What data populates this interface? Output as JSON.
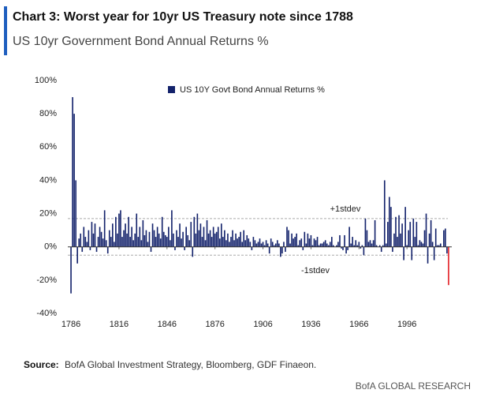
{
  "chart_data": {
    "type": "bar",
    "title": "Chart 3: Worst year for 10yr US Treasury note since 1788",
    "subtitle": "US 10yr Government Bond Annual Returns %",
    "source_label": "Source:",
    "source": "BofA Global Investment Strategy, Bloomberg, GDF Finaeon.",
    "footer": "BofA GLOBAL RESEARCH",
    "x": [
      1786,
      1787,
      1788,
      1789,
      1790,
      1791,
      1792,
      1793,
      1794,
      1795,
      1796,
      1797,
      1798,
      1799,
      1800,
      1801,
      1802,
      1803,
      1804,
      1805,
      1806,
      1807,
      1808,
      1809,
      1810,
      1811,
      1812,
      1813,
      1814,
      1815,
      1816,
      1817,
      1818,
      1819,
      1820,
      1821,
      1822,
      1823,
      1824,
      1825,
      1826,
      1827,
      1828,
      1829,
      1830,
      1831,
      1832,
      1833,
      1834,
      1835,
      1836,
      1837,
      1838,
      1839,
      1840,
      1841,
      1842,
      1843,
      1844,
      1845,
      1846,
      1847,
      1848,
      1849,
      1850,
      1851,
      1852,
      1853,
      1854,
      1855,
      1856,
      1857,
      1858,
      1859,
      1860,
      1861,
      1862,
      1863,
      1864,
      1865,
      1866,
      1867,
      1868,
      1869,
      1870,
      1871,
      1872,
      1873,
      1874,
      1875,
      1876,
      1877,
      1878,
      1879,
      1880,
      1881,
      1882,
      1883,
      1884,
      1885,
      1886,
      1887,
      1888,
      1889,
      1890,
      1891,
      1892,
      1893,
      1894,
      1895,
      1896,
      1897,
      1898,
      1899,
      1900,
      1901,
      1902,
      1903,
      1904,
      1905,
      1906,
      1907,
      1908,
      1909,
      1910,
      1911,
      1912,
      1913,
      1914,
      1915,
      1916,
      1917,
      1918,
      1919,
      1920,
      1921,
      1922,
      1923,
      1924,
      1925,
      1926,
      1927,
      1928,
      1929,
      1930,
      1931,
      1932,
      1933,
      1934,
      1935,
      1936,
      1937,
      1938,
      1939,
      1940,
      1941,
      1942,
      1943,
      1944,
      1945,
      1946,
      1947,
      1948,
      1949,
      1950,
      1951,
      1952,
      1953,
      1954,
      1955,
      1956,
      1957,
      1958,
      1959,
      1960,
      1961,
      1962,
      1963,
      1964,
      1965,
      1966,
      1967,
      1968,
      1969,
      1970,
      1971,
      1972,
      1973,
      1974,
      1975,
      1976,
      1977,
      1978,
      1979,
      1980,
      1981,
      1982,
      1983,
      1984,
      1985,
      1986,
      1987,
      1988,
      1989,
      1990,
      1991,
      1992,
      1993,
      1994,
      1995,
      1996,
      1997,
      1998,
      1999,
      2000,
      2001,
      2002,
      2003,
      2004,
      2005,
      2006,
      2007,
      2008,
      2009,
      2010,
      2011,
      2012,
      2013,
      2014,
      2015,
      2016,
      2017,
      2018,
      2019,
      2020,
      2021,
      2022
    ],
    "series": [
      {
        "name": "US 10Y Govt Bond Annual Returns %",
        "color": "#13226b",
        "values": [
          -28,
          90,
          80,
          40,
          -10,
          5,
          8,
          -3,
          12,
          6,
          3,
          10,
          -2,
          15,
          8,
          14,
          -3,
          6,
          12,
          9,
          5,
          22,
          4,
          -4,
          10,
          6,
          14,
          3,
          18,
          8,
          20,
          22,
          6,
          10,
          14,
          8,
          18,
          6,
          12,
          4,
          8,
          20,
          6,
          12,
          4,
          16,
          7,
          10,
          3,
          9,
          -3,
          14,
          10,
          6,
          12,
          8,
          5,
          18,
          9,
          7,
          6,
          12,
          4,
          22,
          8,
          -2,
          10,
          6,
          14,
          5,
          9,
          -2,
          12,
          7,
          4,
          15,
          -6,
          18,
          8,
          20,
          10,
          14,
          6,
          12,
          4,
          16,
          8,
          10,
          6,
          12,
          8,
          9,
          12,
          5,
          14,
          6,
          10,
          4,
          8,
          3,
          6,
          10,
          4,
          8,
          5,
          6,
          9,
          3,
          10,
          4,
          7,
          5,
          3,
          -2,
          6,
          4,
          2,
          3,
          5,
          2,
          3,
          1,
          4,
          2,
          -4,
          5,
          3,
          1,
          2,
          4,
          2,
          -6,
          -4,
          3,
          -3,
          12,
          10,
          2,
          8,
          5,
          6,
          8,
          1,
          4,
          5,
          -2,
          9,
          2,
          8,
          5,
          7,
          1,
          5,
          4,
          6,
          1,
          2,
          2,
          3,
          4,
          2,
          1,
          3,
          6,
          1,
          0,
          1,
          3,
          7,
          -1,
          -2,
          7,
          -4,
          -2,
          12,
          2,
          6,
          1,
          4,
          1,
          3,
          -1,
          1,
          -5,
          17,
          10,
          3,
          4,
          2,
          4,
          16,
          1,
          0,
          1,
          -3,
          1,
          40,
          2,
          15,
          30,
          24,
          -3,
          8,
          18,
          6,
          19,
          8,
          14,
          -8,
          24,
          1,
          10,
          15,
          -8,
          17,
          6,
          15,
          1,
          4,
          3,
          2,
          10,
          20,
          -10,
          8,
          16,
          3,
          -8,
          11,
          1,
          1,
          2,
          0,
          10,
          11,
          -4,
          -23
        ]
      }
    ],
    "last_bar_color": "#e31e24",
    "reference_lines": [
      {
        "value": 17,
        "label": "+1stdev"
      },
      {
        "value": -5,
        "label": "-1stdev"
      }
    ],
    "xlim": [
      1784,
      2024
    ],
    "xticks": [
      1786,
      1816,
      1846,
      1876,
      1906,
      1936,
      1966,
      1996
    ],
    "ylim": [
      -40,
      100
    ],
    "yticks": [
      {
        "value": -40,
        "label": "-40%"
      },
      {
        "value": -20,
        "label": "-20%"
      },
      {
        "value": 0,
        "label": "0%"
      },
      {
        "value": 20,
        "label": "20%"
      },
      {
        "value": 40,
        "label": "40%"
      },
      {
        "value": 60,
        "label": "60%"
      },
      {
        "value": 80,
        "label": "80%"
      },
      {
        "value": 100,
        "label": "100%"
      }
    ],
    "grid": false,
    "legend": "top"
  }
}
